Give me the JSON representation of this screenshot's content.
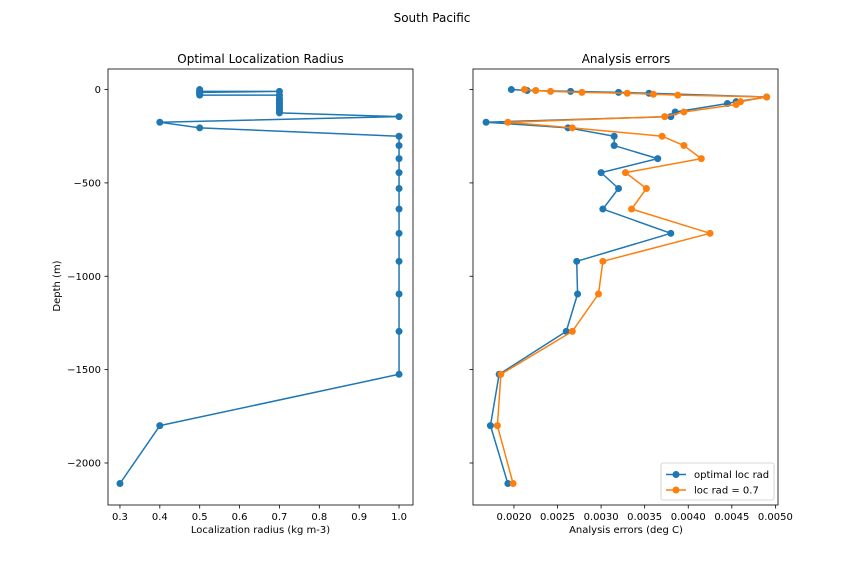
{
  "figure": {
    "suptitle": "South Pacific"
  },
  "chart_data": [
    {
      "type": "line",
      "title": "Optimal Localization Radius",
      "xlabel": "Localization radius (kg m-3)",
      "ylabel": "Depth (m)",
      "xlim": [
        0.27,
        1.035
      ],
      "ylim": [
        -2225,
        110
      ],
      "xticks": [
        0.3,
        0.4,
        0.5,
        0.6,
        0.7,
        0.8,
        0.9,
        1.0
      ],
      "xtick_labels": [
        "0.3",
        "0.4",
        "0.5",
        "0.6",
        "0.7",
        "0.8",
        "0.9",
        "1.0"
      ],
      "yticks": [
        0,
        -500,
        -1000,
        -1500,
        -2000
      ],
      "ytick_labels": [
        "0",
        "−500",
        "−1000",
        "−1500",
        "−2000"
      ],
      "grid": false,
      "series": [
        {
          "color": "#1f77b4",
          "marker": "circle",
          "points": [
            [
              0.5,
              0
            ],
            [
              0.5,
              -5
            ],
            [
              0.5,
              -10
            ],
            [
              0.7,
              -10
            ],
            [
              0.5,
              -15
            ],
            [
              0.5,
              -20
            ],
            [
              0.5,
              -25
            ],
            [
              0.5,
              -30
            ],
            [
              0.7,
              -30
            ],
            [
              0.7,
              -45
            ],
            [
              0.7,
              -55
            ],
            [
              0.7,
              -65
            ],
            [
              0.7,
              -75
            ],
            [
              0.7,
              -85
            ],
            [
              0.7,
              -95
            ],
            [
              0.7,
              -105
            ],
            [
              0.7,
              -115
            ],
            [
              0.7,
              -125
            ],
            [
              1.0,
              -145
            ],
            [
              0.4,
              -175
            ],
            [
              0.5,
              -205
            ],
            [
              1.0,
              -250
            ],
            [
              1.0,
              -300
            ],
            [
              1.0,
              -370
            ],
            [
              1.0,
              -445
            ],
            [
              1.0,
              -530
            ],
            [
              1.0,
              -640
            ],
            [
              1.0,
              -770
            ],
            [
              1.0,
              -920
            ],
            [
              1.0,
              -1095
            ],
            [
              1.0,
              -1295
            ],
            [
              1.0,
              -1525
            ],
            [
              0.4,
              -1800
            ],
            [
              0.3,
              -2110
            ]
          ]
        }
      ]
    },
    {
      "type": "line",
      "title": "Analysis errors",
      "xlabel": "Analysis errors (deg C)",
      "ylabel": "",
      "xlim": [
        0.00153,
        0.00503
      ],
      "ylim": [
        -2225,
        110
      ],
      "xticks": [
        0.002,
        0.0025,
        0.003,
        0.0035,
        0.004,
        0.0045,
        0.005
      ],
      "xtick_labels": [
        "0.0020",
        "0.0025",
        "0.0030",
        "0.0035",
        "0.0040",
        "0.0045",
        "0.0050"
      ],
      "yticks": [
        0,
        -500,
        -1000,
        -1500,
        -2000
      ],
      "grid": false,
      "legend": "lower-right",
      "series": [
        {
          "name": "optimal loc rad",
          "color": "#1f77b4",
          "marker": "circle",
          "points": [
            [
              0.00197,
              0
            ],
            [
              0.00215,
              -5
            ],
            [
              0.00265,
              -10
            ],
            [
              0.0032,
              -15
            ],
            [
              0.00355,
              -20
            ],
            [
              0.0049,
              -40
            ],
            [
              0.00455,
              -65
            ],
            [
              0.00445,
              -75
            ],
            [
              0.00385,
              -120
            ],
            [
              0.0038,
              -145
            ],
            [
              0.00168,
              -175
            ],
            [
              0.00262,
              -205
            ],
            [
              0.00315,
              -250
            ],
            [
              0.00315,
              -300
            ],
            [
              0.00365,
              -370
            ],
            [
              0.003,
              -445
            ],
            [
              0.0032,
              -530
            ],
            [
              0.00302,
              -640
            ],
            [
              0.0038,
              -770
            ],
            [
              0.00272,
              -920
            ],
            [
              0.00273,
              -1095
            ],
            [
              0.0026,
              -1295
            ],
            [
              0.00183,
              -1525
            ],
            [
              0.00173,
              -1800
            ],
            [
              0.00193,
              -2110
            ]
          ]
        },
        {
          "name": "loc rad = 0.7",
          "color": "#ff7f0e",
          "marker": "circle",
          "points": [
            [
              0.00212,
              0
            ],
            [
              0.00225,
              -5
            ],
            [
              0.00242,
              -10
            ],
            [
              0.00278,
              -15
            ],
            [
              0.0033,
              -20
            ],
            [
              0.0036,
              -25
            ],
            [
              0.00388,
              -30
            ],
            [
              0.0049,
              -40
            ],
            [
              0.0046,
              -65
            ],
            [
              0.00455,
              -80
            ],
            [
              0.00395,
              -120
            ],
            [
              0.00373,
              -145
            ],
            [
              0.00193,
              -175
            ],
            [
              0.00267,
              -205
            ],
            [
              0.0037,
              -250
            ],
            [
              0.00395,
              -300
            ],
            [
              0.00415,
              -370
            ],
            [
              0.00328,
              -445
            ],
            [
              0.00352,
              -530
            ],
            [
              0.00335,
              -640
            ],
            [
              0.00425,
              -770
            ],
            [
              0.00302,
              -920
            ],
            [
              0.00297,
              -1095
            ],
            [
              0.00267,
              -1295
            ],
            [
              0.00185,
              -1525
            ],
            [
              0.00181,
              -1800
            ],
            [
              0.00199,
              -2110
            ]
          ]
        }
      ]
    }
  ]
}
